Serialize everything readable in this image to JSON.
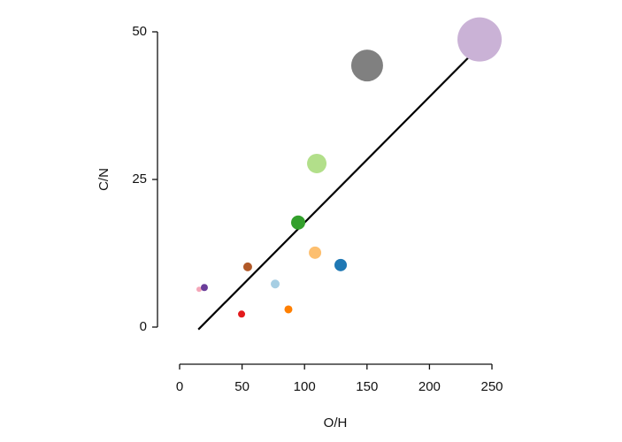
{
  "chart_data": {
    "type": "scatter",
    "x_label": "O/H",
    "y_label": "C/N",
    "x": [
      15.6,
      19.8,
      49.6,
      54.5,
      76.5,
      87.1,
      94.9,
      108.4,
      109.8,
      128.9,
      150.1,
      240.1
    ],
    "values": [
      6.4,
      6.7,
      2.2,
      10.2,
      7.3,
      3.0,
      17.7,
      12.6,
      27.7,
      10.5,
      44.3,
      48.7
    ],
    "sizes": [
      3,
      4,
      4,
      5,
      5,
      4.5,
      8,
      7,
      11,
      7,
      18,
      25
    ],
    "colors": [
      "#f4a6b8",
      "#6a3d9a",
      "#e31a1c",
      "#b15928",
      "#a6cee3",
      "#ff7f00",
      "#33a02c",
      "#fdbf6f",
      "#b2df8a",
      "#1f78b4",
      "#808080",
      "#cab2d6"
    ],
    "trendline": {
      "x": [
        15,
        239
      ],
      "y": [
        -0.4,
        47.3
      ],
      "color": "#000000"
    },
    "xlim": [
      0,
      250
    ],
    "ylim": [
      0,
      50
    ],
    "xticks": [
      0,
      50,
      100,
      150,
      200,
      250
    ],
    "yticks": [
      0,
      25,
      50
    ]
  }
}
